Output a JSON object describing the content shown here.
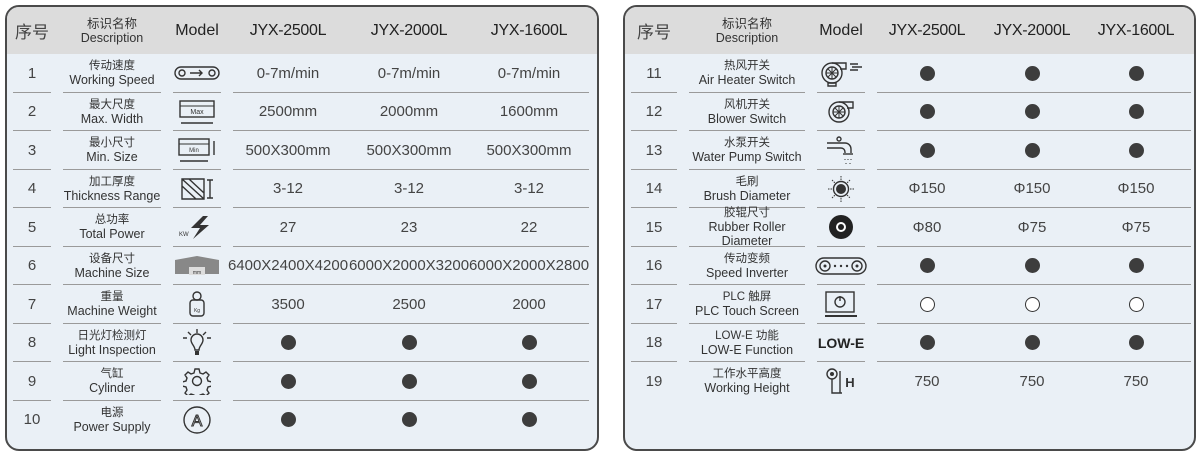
{
  "header": {
    "no": "序号",
    "desc_zh": "标识名称",
    "desc_en": "Description",
    "model": "Model",
    "columns": [
      "JYX-2500L",
      "JYX-2000L",
      "JYX-1600L"
    ]
  },
  "left_rows": [
    {
      "no": "1",
      "zh": "传动速度",
      "en": "Working Speed",
      "icon": "conveyor-speed-icon",
      "values": [
        "0-7m/min",
        "0-7m/min",
        "0-7m/min"
      ]
    },
    {
      "no": "2",
      "zh": "最大尺度",
      "en": "Max. Width",
      "icon": "max-width-icon",
      "icon_text": "Max",
      "values": [
        "2500mm",
        "2000mm",
        "1600mm"
      ]
    },
    {
      "no": "3",
      "zh": "最小尺寸",
      "en": "Min. Size",
      "icon": "min-size-icon",
      "icon_text": "Min",
      "values": [
        "500X300mm",
        "500X300mm",
        "500X300mm"
      ]
    },
    {
      "no": "4",
      "zh": "加工厚度",
      "en": "Thickness Range",
      "icon": "thickness-icon",
      "values": [
        "3-12",
        "3-12",
        "3-12"
      ]
    },
    {
      "no": "5",
      "zh": "总功率",
      "en": "Total Power",
      "icon": "power-kw-icon",
      "icon_text": "KW",
      "values": [
        "27",
        "23",
        "22"
      ]
    },
    {
      "no": "6",
      "zh": "设备尺寸",
      "en": "Machine Size",
      "icon": "machine-size-icon",
      "icon_text": "mm",
      "values": [
        "6400X2400X4200",
        "6000X2000X3200",
        "6000X2000X2800"
      ]
    },
    {
      "no": "7",
      "zh": "重量",
      "en": "Machine Weight",
      "icon": "weight-icon",
      "icon_text": "Kg",
      "values": [
        "3500",
        "2500",
        "2000"
      ]
    },
    {
      "no": "8",
      "zh": "日光灯检测灯",
      "en": "Light Inspection",
      "icon": "light-bulb-icon",
      "values": [
        "filled",
        "filled",
        "filled"
      ]
    },
    {
      "no": "9",
      "zh": "气缸",
      "en": "Cylinder",
      "icon": "gear-icon",
      "values": [
        "filled",
        "filled",
        "filled"
      ]
    },
    {
      "no": "10",
      "zh": "电源",
      "en": "Power Supply",
      "icon": "power-supply-a-icon",
      "icon_text": "A",
      "values": [
        "filled",
        "filled",
        "filled"
      ]
    }
  ],
  "right_rows": [
    {
      "no": "11",
      "zh": "热风开关",
      "en": "Air Heater Switch",
      "icon": "air-heater-icon",
      "values": [
        "filled",
        "filled",
        "filled"
      ]
    },
    {
      "no": "12",
      "zh": "风机开关",
      "en": "Blower Switch",
      "icon": "blower-icon",
      "values": [
        "filled",
        "filled",
        "filled"
      ]
    },
    {
      "no": "13",
      "zh": "水泵开关",
      "en": "Water Pump Switch",
      "icon": "water-tap-icon",
      "values": [
        "filled",
        "filled",
        "filled"
      ]
    },
    {
      "no": "14",
      "zh": "毛刷",
      "en": "Brush Diameter",
      "icon": "brush-icon",
      "values": [
        "Φ150",
        "Φ150",
        "Φ150"
      ]
    },
    {
      "no": "15",
      "zh": "胶辊尺寸",
      "en": "Rubber Roller Diameter",
      "icon": "roller-icon",
      "values": [
        "Φ80",
        "Φ75",
        "Φ75"
      ]
    },
    {
      "no": "16",
      "zh": "传动变频",
      "en": "Speed Inverter",
      "icon": "belt-drive-icon",
      "values": [
        "filled",
        "filled",
        "filled"
      ]
    },
    {
      "no": "17",
      "zh": "PLC 触屏",
      "en": "PLC Touch Screen",
      "icon": "touch-screen-icon",
      "values": [
        "open",
        "open",
        "open"
      ]
    },
    {
      "no": "18",
      "zh": "LOW-E 功能",
      "en": "LOW-E Function",
      "icon": "lowe-text-icon",
      "icon_text": "LOW-E",
      "values": [
        "filled",
        "filled",
        "filled"
      ]
    },
    {
      "no": "19",
      "zh": "工作水平高度",
      "en": "Working Height",
      "icon": "working-height-icon",
      "icon_text": "H",
      "values": [
        "750",
        "750",
        "750"
      ]
    }
  ],
  "colors": {
    "border": "#4a4a4a",
    "header_bg": "#dcdcdc",
    "row_bg": "#eaf0f6",
    "dot": "#3d3d3d"
  }
}
